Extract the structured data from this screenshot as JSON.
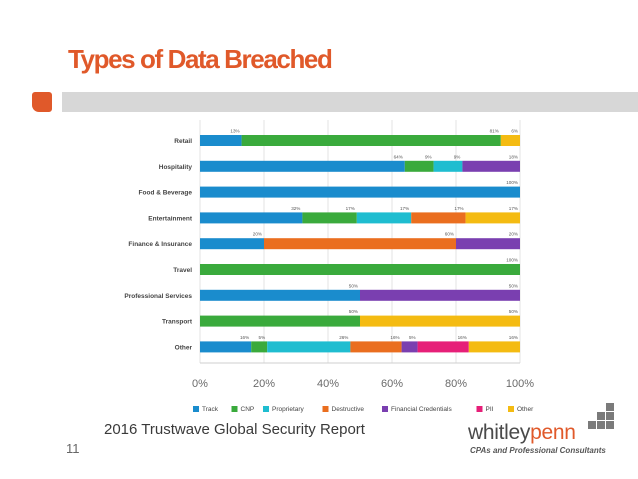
{
  "slide": {
    "title": "Types of Data Breached",
    "source": "2016 Trustwave Global Security Report",
    "page_number": "11"
  },
  "logo": {
    "wordmark_prefix": "whitley",
    "wordmark_suffix": "penn",
    "tagline": "CPAs and Professional Consultants"
  },
  "colors": {
    "title": "#e0592a",
    "accent": "#e0592a",
    "bar": "#d7d7d7"
  },
  "chart_data": {
    "type": "bar",
    "orientation": "horizontal",
    "stacked": true,
    "categories": [
      "Retail",
      "Hospitality",
      "Food & Beverage",
      "Entertainment",
      "Finance & Insurance",
      "Travel",
      "Professional Services",
      "Transport",
      "Other"
    ],
    "series": [
      {
        "name": "Track",
        "color": "#1a8ccd",
        "values": [
          13,
          64,
          100,
          32,
          20,
          0,
          50,
          0,
          16
        ]
      },
      {
        "name": "CNP",
        "color": "#3aaa3c",
        "values": [
          81,
          9,
          0,
          17,
          0,
          100,
          0,
          50,
          5
        ]
      },
      {
        "name": "Proprietary",
        "color": "#1fbdd0",
        "values": [
          0,
          9,
          0,
          17,
          0,
          0,
          0,
          0,
          26
        ]
      },
      {
        "name": "Destructive",
        "color": "#ea6e1f",
        "values": [
          0,
          0,
          0,
          17,
          60,
          0,
          0,
          0,
          16
        ]
      },
      {
        "name": "Financial Credentials",
        "color": "#7a3fb0",
        "values": [
          0,
          18,
          0,
          0,
          20,
          0,
          50,
          0,
          5
        ]
      },
      {
        "name": "PII",
        "color": "#e61f78",
        "values": [
          0,
          0,
          0,
          0,
          0,
          0,
          0,
          0,
          16
        ]
      },
      {
        "name": "Other",
        "color": "#f4bb12",
        "values": [
          6,
          0,
          0,
          17,
          0,
          0,
          0,
          50,
          16
        ]
      }
    ],
    "xlim": [
      0,
      100
    ],
    "x_ticks": [
      "0%",
      "20%",
      "40%",
      "60%",
      "80%",
      "100%"
    ],
    "grid": true,
    "legend_position": "bottom",
    "xlabel": "",
    "ylabel": ""
  }
}
